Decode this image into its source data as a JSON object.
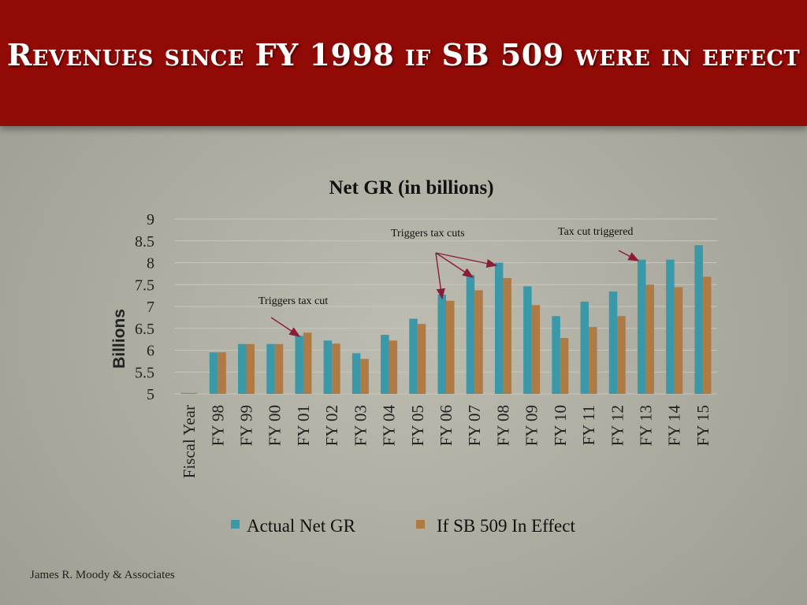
{
  "slide": {
    "title": "Revenues since FY 1998 if SB 509 were in effect",
    "footer": "James R. Moody & Associates"
  },
  "colors": {
    "title_band": "#920a06",
    "actual": "#3a98a8",
    "sb509": "#b07a45"
  },
  "chart_data": {
    "type": "bar",
    "title": "Net GR (in billions)",
    "ylabel": "Billions",
    "ylim": [
      5,
      9
    ],
    "yticks": [
      "5",
      "5.5",
      "6",
      "6.5",
      "7",
      "7.5",
      "8",
      "8.5",
      "9"
    ],
    "categories": [
      "Fiscal Year",
      "FY 98",
      "FY 99",
      "FY 00",
      "FY 01",
      "FY 02",
      "FY 03",
      "FY 04",
      "FY 05",
      "FY 06",
      "FY 07",
      "FY 08",
      "FY 09",
      "FY 10",
      "FY 11",
      "FY 12",
      "FY 13",
      "FY 14",
      "FY 15"
    ],
    "series": [
      {
        "name": "Actual Net GR",
        "values": [
          5.02,
          5.95,
          6.14,
          6.14,
          6.33,
          6.22,
          5.93,
          6.35,
          6.72,
          7.27,
          7.72,
          8.0,
          7.46,
          6.78,
          7.11,
          7.34,
          8.07,
          8.07,
          8.4
        ]
      },
      {
        "name": "If SB 509 In Effect",
        "values": [
          5.02,
          5.95,
          6.14,
          6.14,
          6.4,
          6.15,
          5.8,
          6.22,
          6.6,
          7.13,
          7.37,
          7.65,
          7.03,
          6.28,
          6.53,
          6.78,
          7.5,
          7.44,
          7.68
        ]
      }
    ],
    "annotations": [
      {
        "text": "Triggers tax cut"
      },
      {
        "text": "Triggers tax cuts"
      },
      {
        "text": "Tax cut triggered"
      }
    ],
    "legend": "bottom",
    "grid": true
  }
}
